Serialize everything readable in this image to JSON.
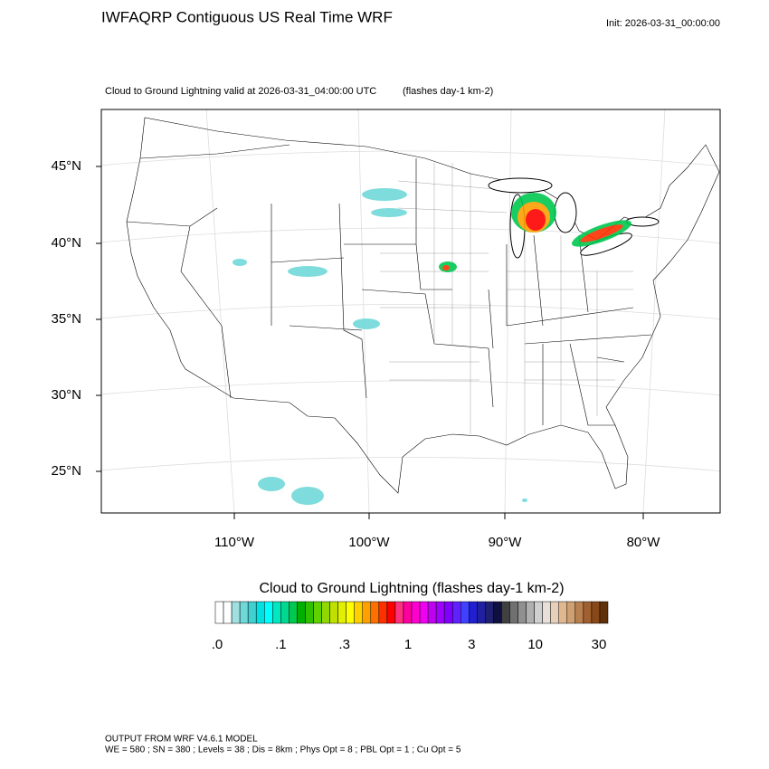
{
  "header": {
    "title": "IWFAQRP Contiguous US Real Time WRF",
    "init": "Init: 2026-03-31_00:00:00"
  },
  "map": {
    "subtitle": "Cloud to Ground Lightning valid at 2026-03-31_04:00:00 UTC",
    "units": "(flashes day-1 km-2)",
    "lat_labels": [
      "45°N",
      "40°N",
      "35°N",
      "30°N",
      "25°N"
    ],
    "lon_labels": [
      "110°W",
      "100°W",
      "90°W",
      "80°W"
    ]
  },
  "colorbar": {
    "title": "Cloud to Ground Lightning  (flashes day-1 km-2)",
    "colors": [
      "#ffffff",
      "#ffffff",
      "#a0e0e0",
      "#70d8d8",
      "#40d0d0",
      "#00e0e0",
      "#00ffff",
      "#00e8c0",
      "#00d890",
      "#00c850",
      "#00b000",
      "#30c000",
      "#60d000",
      "#90d800",
      "#c0e000",
      "#e0f000",
      "#ffff00",
      "#ffd000",
      "#ffa000",
      "#ff7000",
      "#ff3000",
      "#ff0000",
      "#ff3080",
      "#ff00a0",
      "#ff00d0",
      "#f000f0",
      "#c000f0",
      "#a000ff",
      "#8000ff",
      "#6020ff",
      "#4040ff",
      "#2020d0",
      "#2020a0",
      "#202070",
      "#101040",
      "#404040",
      "#707070",
      "#909090",
      "#b0b0b0",
      "#d0d0d0",
      "#e8e0d8",
      "#e8d0b8",
      "#e0b890",
      "#d0a070",
      "#b88050",
      "#a06030",
      "#884818",
      "#603008"
    ],
    "labels": [
      ".0",
      ".1",
      ".3",
      "1",
      "3",
      "10",
      "30"
    ]
  },
  "footer": {
    "line1": "OUTPUT FROM WRF V4.6.1 MODEL",
    "line2": "WE = 580 ; SN = 380 ; Levels = 38 ; Dis = 8km ; Phys Opt = 8 ; PBL Opt = 1 ; Cu Opt = 5"
  }
}
